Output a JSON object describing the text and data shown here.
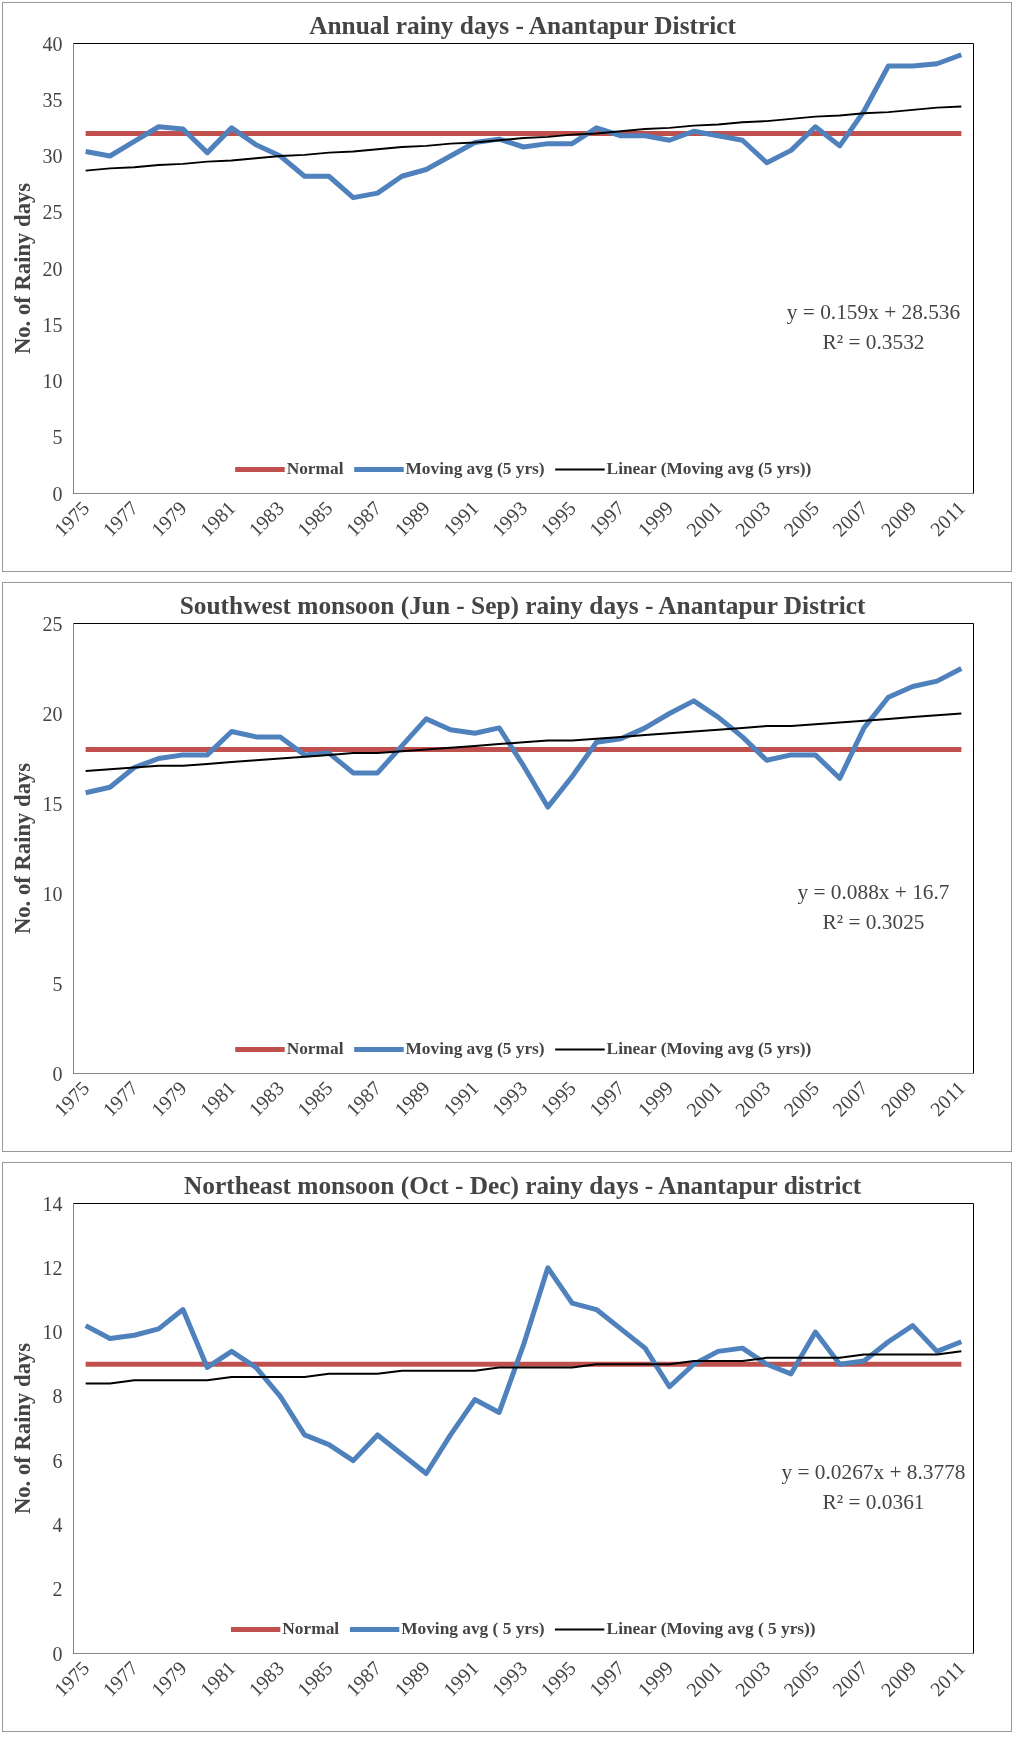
{
  "chart_data": [
    {
      "type": "line",
      "title": "Annual rainy days - Anantapur District",
      "ylabel": "No. of Rainy days",
      "categories": [
        "1975",
        null,
        "1977",
        null,
        "1979",
        null,
        "1981",
        null,
        "1983",
        null,
        "1985",
        null,
        "1987",
        null,
        "1989",
        null,
        "1991",
        null,
        "1993",
        null,
        "1995",
        null,
        "1997",
        null,
        "1999",
        null,
        "2001",
        null,
        "2003",
        null,
        "2005",
        null,
        "2007",
        null,
        "2009",
        null,
        "2011"
      ],
      "ylim": [
        0,
        40
      ],
      "yticks": [
        0,
        5,
        10,
        15,
        20,
        25,
        30,
        35,
        40
      ],
      "grid": false,
      "legend": "bottom",
      "series": [
        {
          "name": "Normal",
          "color": "#c0504d",
          "values": [
            32,
            32,
            32,
            32,
            32,
            32,
            32,
            32,
            32,
            32,
            32,
            32,
            32,
            32,
            32,
            32,
            32,
            32,
            32,
            32,
            32,
            32,
            32,
            32,
            32,
            32,
            32,
            32,
            32,
            32,
            32,
            32,
            32,
            32,
            32,
            32,
            32
          ]
        },
        {
          "name": "Moving avg (5 yrs)",
          "color": "#4f81bd",
          "values": [
            30.4,
            30.0,
            31.3,
            32.6,
            32.4,
            30.3,
            32.5,
            31.0,
            30.0,
            28.2,
            28.2,
            26.3,
            26.7,
            28.2,
            28.8,
            30.0,
            31.2,
            31.5,
            30.8,
            31.1,
            31.1,
            32.5,
            31.8,
            31.8,
            31.4,
            32.2,
            31.8,
            31.4,
            29.4,
            30.5,
            32.6,
            30.9,
            34.0,
            38.0,
            38.0,
            38.2,
            39.0
          ]
        },
        {
          "name": "Linear (Moving avg (5 yrs))",
          "color": "#000000",
          "values": [
            28.7,
            28.9,
            29.0,
            29.2,
            29.3,
            29.5,
            29.6,
            29.8,
            30.0,
            30.1,
            30.3,
            30.4,
            30.6,
            30.8,
            30.9,
            31.1,
            31.2,
            31.4,
            31.6,
            31.7,
            31.9,
            32.0,
            32.2,
            32.4,
            32.5,
            32.7,
            32.8,
            33.0,
            33.1,
            33.3,
            33.5,
            33.6,
            33.8,
            33.9,
            34.1,
            34.3,
            34.4
          ]
        }
      ],
      "annotations": [
        "y = 0.159x + 28.536",
        "R² = 0.3532"
      ]
    },
    {
      "type": "line",
      "title": "Southwest monsoon (Jun - Sep) rainy days - Anantapur District",
      "ylabel": "No. of Rainy days",
      "categories": [
        "1975",
        null,
        "1977",
        null,
        "1979",
        null,
        "1981",
        null,
        "1983",
        null,
        "1985",
        null,
        "1987",
        null,
        "1989",
        null,
        "1991",
        null,
        "1993",
        null,
        "1995",
        null,
        "1997",
        null,
        "1999",
        null,
        "2001",
        null,
        "2003",
        null,
        "2005",
        null,
        "2007",
        null,
        "2009",
        null,
        "2011"
      ],
      "ylim": [
        0,
        25
      ],
      "yticks": [
        0,
        5,
        10,
        15,
        20,
        25
      ],
      "grid": false,
      "legend": "bottom",
      "series": [
        {
          "name": "Normal",
          "color": "#c0504d",
          "values": [
            18,
            18,
            18,
            18,
            18,
            18,
            18,
            18,
            18,
            18,
            18,
            18,
            18,
            18,
            18,
            18,
            18,
            18,
            18,
            18,
            18,
            18,
            18,
            18,
            18,
            18,
            18,
            18,
            18,
            18,
            18,
            18,
            18,
            18,
            18,
            18,
            18
          ]
        },
        {
          "name": "Moving avg (5 yrs)",
          "color": "#4f81bd",
          "values": [
            15.6,
            15.9,
            17.0,
            17.5,
            17.7,
            17.7,
            19.0,
            18.7,
            18.7,
            17.7,
            17.8,
            16.7,
            16.7,
            18.2,
            19.7,
            19.1,
            18.9,
            19.2,
            17.1,
            14.8,
            16.5,
            18.4,
            18.6,
            19.2,
            20.0,
            20.7,
            19.8,
            18.7,
            17.4,
            17.7,
            17.7,
            16.4,
            19.2,
            20.9,
            21.5,
            21.8,
            22.5
          ]
        },
        {
          "name": "Linear (Moving avg (5 yrs))",
          "color": "#000000",
          "values": [
            16.8,
            16.9,
            17.0,
            17.1,
            17.1,
            17.2,
            17.3,
            17.4,
            17.5,
            17.6,
            17.7,
            17.8,
            17.8,
            17.9,
            18.0,
            18.1,
            18.2,
            18.3,
            18.4,
            18.5,
            18.5,
            18.6,
            18.7,
            18.8,
            18.9,
            19.0,
            19.1,
            19.2,
            19.3,
            19.3,
            19.4,
            19.5,
            19.6,
            19.7,
            19.8,
            19.9,
            20.0
          ]
        }
      ],
      "annotations": [
        "y = 0.088x + 16.7",
        "R² = 0.3025"
      ]
    },
    {
      "type": "line",
      "title": "Northeast monsoon (Oct - Dec) rainy days - Anantapur district",
      "ylabel": "No. of Rainy days",
      "categories": [
        "1975",
        null,
        "1977",
        null,
        "1979",
        null,
        "1981",
        null,
        "1983",
        null,
        "1985",
        null,
        "1987",
        null,
        "1989",
        null,
        "1991",
        null,
        "1993",
        null,
        "1995",
        null,
        "1997",
        null,
        "1999",
        null,
        "2001",
        null,
        "2003",
        null,
        "2005",
        null,
        "2007",
        null,
        "2009",
        null,
        "2011"
      ],
      "ylim": [
        0,
        14
      ],
      "yticks": [
        0,
        2,
        4,
        6,
        8,
        10,
        12,
        14
      ],
      "grid": false,
      "legend": "bottom",
      "series": [
        {
          "name": "Normal",
          "color": "#c0504d",
          "values": [
            9,
            9,
            9,
            9,
            9,
            9,
            9,
            9,
            9,
            9,
            9,
            9,
            9,
            9,
            9,
            9,
            9,
            9,
            9,
            9,
            9,
            9,
            9,
            9,
            9,
            9,
            9,
            9,
            9,
            9,
            9,
            9,
            9,
            9,
            9,
            9,
            9
          ]
        },
        {
          "name": "Moving avg ( 5 yrs)",
          "color": "#4f81bd",
          "values": [
            10.2,
            9.8,
            9.9,
            10.1,
            10.7,
            8.9,
            9.4,
            8.9,
            8.0,
            6.8,
            6.5,
            6.0,
            6.8,
            6.2,
            5.6,
            6.8,
            7.9,
            7.5,
            9.6,
            12.0,
            10.9,
            10.7,
            10.1,
            9.5,
            8.3,
            9.0,
            9.4,
            9.5,
            9.0,
            8.7,
            10.0,
            9.0,
            9.1,
            9.7,
            10.2,
            9.4,
            9.7
          ]
        },
        {
          "name": "Linear (Moving avg ( 5 yrs))",
          "color": "#000000",
          "values": [
            8.4,
            8.4,
            8.5,
            8.5,
            8.5,
            8.5,
            8.6,
            8.6,
            8.6,
            8.6,
            8.7,
            8.7,
            8.7,
            8.8,
            8.8,
            8.8,
            8.8,
            8.9,
            8.9,
            8.9,
            8.9,
            9.0,
            9.0,
            9.0,
            9.0,
            9.1,
            9.1,
            9.1,
            9.2,
            9.2,
            9.2,
            9.2,
            9.3,
            9.3,
            9.3,
            9.3,
            9.4
          ]
        }
      ],
      "annotations": [
        "y = 0.0267x + 8.3778",
        "R² = 0.0361"
      ]
    }
  ]
}
